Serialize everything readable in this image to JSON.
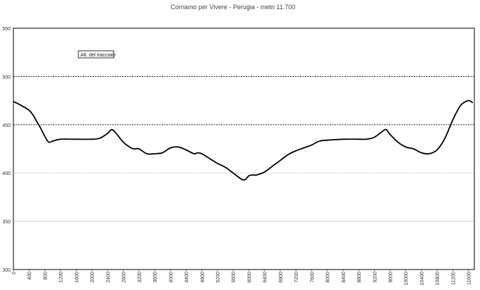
{
  "chart_data": {
    "type": "line",
    "title": "Corriamo per Vivere - Perugia - metri 11.700",
    "xlabel": "",
    "ylabel": "",
    "ylim": [
      300,
      550
    ],
    "y_ticks": [
      300,
      350,
      400,
      450,
      500,
      550
    ],
    "x_ticks": [
      0,
      400,
      800,
      1200,
      1600,
      2000,
      2400,
      2800,
      3200,
      3600,
      4000,
      4400,
      4800,
      5200,
      5600,
      6000,
      6400,
      6800,
      7200,
      7600,
      8000,
      8400,
      8800,
      9200,
      9600,
      10000,
      10400,
      10800,
      11200,
      11600
    ],
    "grid": "horizontal-dotted",
    "legend": {
      "label": "Alt. del tracciato"
    },
    "series": [
      {
        "name": "Alt. del tracciato",
        "color": "#000000",
        "x": [
          0,
          200,
          400,
          500,
          600,
          700,
          800,
          900,
          1000,
          1200,
          1600,
          2000,
          2200,
          2400,
          2500,
          2600,
          2800,
          3000,
          3100,
          3200,
          3400,
          3600,
          3800,
          4000,
          4200,
          4400,
          4600,
          4700,
          4800,
          5000,
          5200,
          5400,
          5600,
          5800,
          5900,
          6000,
          6100,
          6200,
          6400,
          6600,
          6800,
          7000,
          7200,
          7400,
          7600,
          7800,
          8000,
          8400,
          8800,
          9000,
          9200,
          9400,
          9500,
          9600,
          9800,
          10000,
          10200,
          10400,
          10600,
          10800,
          11000,
          11200,
          11400,
          11600,
          11700
        ],
        "y": [
          474,
          470,
          465,
          460,
          453,
          446,
          438,
          432,
          433,
          435,
          435,
          435,
          436,
          441,
          445,
          442,
          432,
          426,
          425,
          425,
          420,
          420,
          421,
          426,
          427,
          424,
          420,
          421,
          420,
          415,
          410,
          406,
          400,
          394,
          393,
          397,
          398,
          398,
          401,
          407,
          413,
          419,
          423,
          426,
          429,
          433,
          434,
          435,
          435,
          435,
          437,
          443,
          445,
          440,
          432,
          427,
          425,
          421,
          420,
          424,
          436,
          455,
          470,
          475,
          473
        ]
      }
    ]
  }
}
